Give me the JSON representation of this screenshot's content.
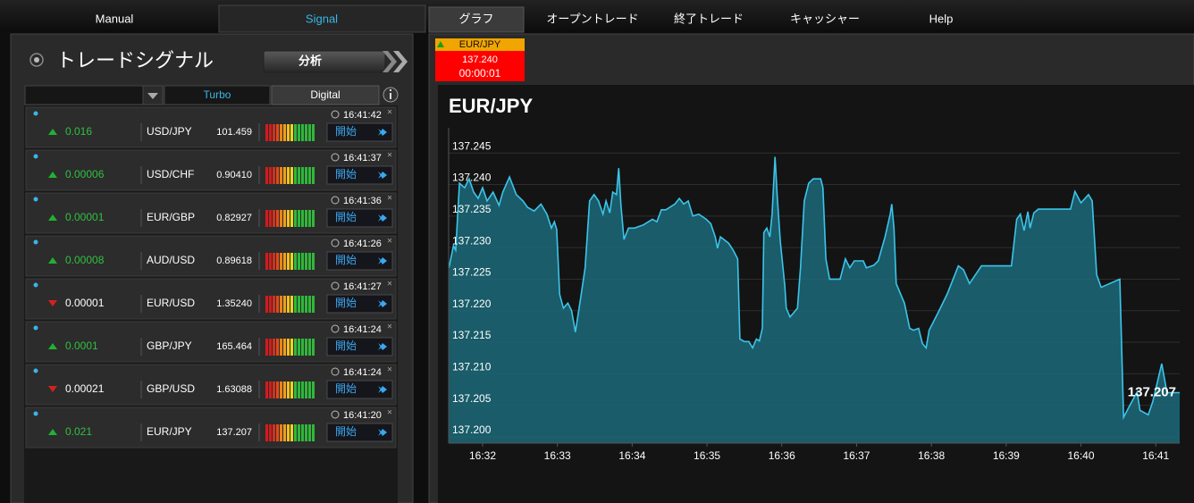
{
  "nav": {
    "tabs": [
      "Manual",
      "Signal",
      "グラフ",
      "オープントレード",
      "終了トレード",
      "キャッシャー",
      "Help"
    ]
  },
  "signals": {
    "title": "トレードシグナル",
    "analyze_button": "分析",
    "tabs": [
      "Turbo",
      "Digital"
    ],
    "start_button": "開始",
    "rows": [
      {
        "change": "0.016",
        "direction": "up",
        "pair": "USD/JPY",
        "price": "101.459",
        "time": "16:41:42"
      },
      {
        "change": "0.00006",
        "direction": "up",
        "pair": "USD/CHF",
        "price": "0.90410",
        "time": "16:41:37"
      },
      {
        "change": "0.00001",
        "direction": "up",
        "pair": "EUR/GBP",
        "price": "0.82927",
        "time": "16:41:36"
      },
      {
        "change": "0.00008",
        "direction": "up",
        "pair": "AUD/USD",
        "price": "0.89618",
        "time": "16:41:26"
      },
      {
        "change": "0.00001",
        "direction": "down",
        "pair": "EUR/USD",
        "price": "1.35240",
        "time": "16:41:27"
      },
      {
        "change": "0.0001",
        "direction": "up",
        "pair": "GBP/JPY",
        "price": "165.464",
        "time": "16:41:24"
      },
      {
        "change": "0.00021",
        "direction": "down",
        "pair": "GBP/USD",
        "price": "1.63088",
        "time": "16:41:24"
      },
      {
        "change": "0.021",
        "direction": "up",
        "pair": "EUR/JPY",
        "price": "137.207",
        "time": "16:41:20"
      }
    ]
  },
  "ticker": {
    "pair": "EUR/JPY",
    "price": "137.240",
    "timer": "00:00:01"
  },
  "chart_data": {
    "type": "area",
    "title": "EUR/JPY",
    "color": "#3cc4ea",
    "fill": "#1b6878",
    "grid": true,
    "x": [
      31.55,
      31.61,
      31.64,
      31.69,
      31.76,
      31.82,
      31.88,
      31.94,
      32.0,
      32.06,
      32.14,
      32.22,
      32.27,
      32.36,
      32.45,
      32.54,
      32.6,
      32.69,
      32.78,
      32.86,
      32.92,
      32.96,
      32.99,
      33.03,
      33.08,
      33.14,
      33.19,
      33.24,
      33.31,
      33.37,
      33.43,
      33.49,
      33.55,
      33.61,
      33.65,
      33.7,
      33.74,
      33.79,
      33.82,
      33.85,
      33.89,
      33.95,
      34.03,
      34.15,
      34.27,
      34.33,
      34.39,
      34.45,
      34.57,
      34.63,
      34.69,
      34.75,
      34.81,
      34.89,
      34.99,
      35.05,
      35.11,
      35.14,
      35.18,
      35.29,
      35.35,
      35.41,
      35.44,
      35.5,
      35.56,
      35.61,
      35.66,
      35.7,
      35.74,
      35.76,
      35.8,
      35.84,
      35.87,
      35.91,
      35.94,
      35.98,
      36.04,
      36.06,
      36.11,
      36.16,
      36.21,
      36.25,
      36.3,
      36.36,
      36.42,
      36.52,
      36.55,
      36.59,
      36.64,
      36.78,
      36.85,
      36.91,
      36.97,
      37.09,
      37.13,
      37.23,
      37.29,
      37.38,
      37.45,
      37.47,
      37.5,
      37.53,
      37.64,
      37.71,
      37.76,
      37.83,
      37.88,
      37.93,
      37.97,
      38.09,
      38.21,
      38.28,
      38.36,
      38.43,
      38.51,
      38.67,
      39.07,
      39.14,
      39.19,
      39.24,
      39.29,
      39.32,
      39.37,
      39.43,
      39.86,
      39.92,
      40.0,
      40.1,
      40.15,
      40.21,
      40.27,
      40.52,
      40.57,
      40.65,
      40.75,
      40.79,
      40.9,
      40.96,
      41.08,
      41.15,
      41.32
    ],
    "values": [
      137.2268,
      137.2303,
      137.2296,
      137.2402,
      137.2395,
      137.2409,
      137.2388,
      137.2378,
      137.2395,
      137.2374,
      137.2388,
      137.2367,
      137.2388,
      137.2412,
      137.2384,
      137.2374,
      137.2364,
      137.2358,
      137.2369,
      137.2353,
      137.2331,
      137.2341,
      137.2329,
      137.2226,
      137.2204,
      137.2212,
      137.22,
      137.2166,
      137.2219,
      137.2268,
      137.2374,
      137.2384,
      137.2374,
      137.2353,
      137.2374,
      137.2355,
      137.2388,
      137.2384,
      137.2426,
      137.2367,
      137.2313,
      137.2331,
      137.2331,
      137.2336,
      137.2345,
      137.2341,
      137.236,
      137.236,
      137.2369,
      137.2378,
      137.2369,
      137.2374,
      137.235,
      137.2353,
      137.2345,
      137.2338,
      137.2317,
      137.2299,
      137.2317,
      137.2307,
      137.2296,
      137.2282,
      137.2155,
      137.2151,
      137.2151,
      137.2141,
      137.2155,
      137.2152,
      137.2172,
      137.2324,
      137.2331,
      137.2317,
      137.2353,
      137.2444,
      137.2381,
      137.231,
      137.224,
      137.2204,
      137.219,
      137.2197,
      137.2204,
      137.2268,
      137.2374,
      137.2402,
      137.2409,
      137.2409,
      137.2395,
      137.2282,
      137.225,
      137.225,
      137.2282,
      137.2268,
      137.2279,
      137.2279,
      137.2268,
      137.2272,
      137.2279,
      137.2317,
      137.2353,
      137.2369,
      137.2331,
      137.2243,
      137.2212,
      137.2172,
      137.2169,
      137.2172,
      137.2148,
      137.2141,
      137.2169,
      137.2197,
      137.2226,
      137.2247,
      137.2271,
      137.2265,
      137.2243,
      137.2271,
      137.2271,
      137.2345,
      137.2353,
      137.2327,
      137.2357,
      137.2331,
      137.2355,
      137.2361,
      137.2361,
      137.2389,
      137.2371,
      137.2384,
      137.2374,
      137.2257,
      137.2237,
      137.225,
      137.2031,
      137.2049,
      137.2071,
      137.2042,
      137.2035,
      137.2056,
      137.2116,
      137.207,
      137.207
    ],
    "xlim": [
      31.546,
      41.32
    ],
    "ylim": [
      137.199,
      137.249
    ],
    "xticks": [
      {
        "value": 32,
        "label": "16:32"
      },
      {
        "value": 33,
        "label": "16:33"
      },
      {
        "value": 34,
        "label": "16:34"
      },
      {
        "value": 35,
        "label": "16:35"
      },
      {
        "value": 36,
        "label": "16:36"
      },
      {
        "value": 37,
        "label": "16:37"
      },
      {
        "value": 38,
        "label": "16:38"
      },
      {
        "value": 39,
        "label": "16:39"
      },
      {
        "value": 40,
        "label": "16:40"
      },
      {
        "value": 41,
        "label": "16:41"
      }
    ],
    "yticks": [
      {
        "value": 137.2,
        "label": "137.200"
      },
      {
        "value": 137.205,
        "label": "137.205"
      },
      {
        "value": 137.21,
        "label": "137.210"
      },
      {
        "value": 137.215,
        "label": "137.215"
      },
      {
        "value": 137.22,
        "label": "137.220"
      },
      {
        "value": 137.225,
        "label": "137.225"
      },
      {
        "value": 137.23,
        "label": "137.230"
      },
      {
        "value": 137.235,
        "label": "137.235"
      },
      {
        "value": 137.24,
        "label": "137.240"
      },
      {
        "value": 137.245,
        "label": "137.245"
      }
    ],
    "last_price": {
      "value": 137.207,
      "label": "137.207"
    }
  }
}
